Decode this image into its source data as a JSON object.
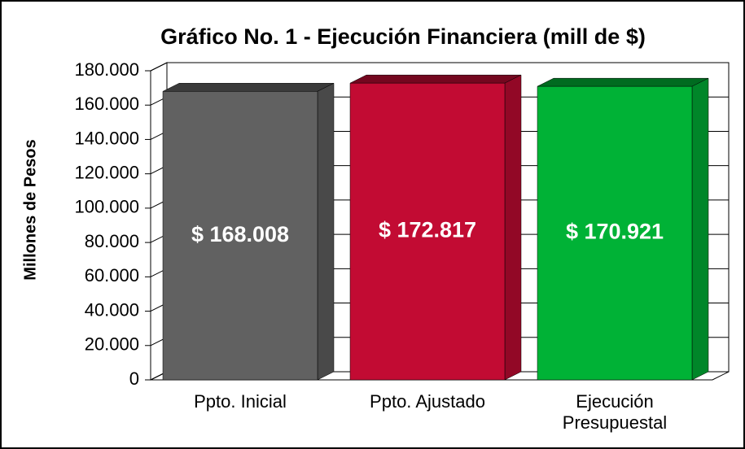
{
  "chart_data": {
    "type": "bar3d",
    "title": "Gráfico No. 1 - Ejecución Financiera (mill de $)",
    "y_label": "Millones de Pesos",
    "categories": [
      "Ppto. Inicial",
      "Ppto. Ajustado",
      "Ejecución Presupuestal"
    ],
    "values": [
      168008,
      172817,
      170921
    ],
    "value_labels": [
      "$ 168.008",
      "$ 172.817",
      "$ 170.921"
    ],
    "colors": [
      "#616161",
      "#c20b33",
      "#00b236"
    ],
    "ylim": [
      0,
      180000
    ],
    "yticks": [
      0,
      {
        "value": 20000,
        "label": "20.000"
      },
      {
        "value": 40000,
        "label": "40.000"
      },
      {
        "value": 60000,
        "label": "60.000"
      },
      {
        "value": 80000,
        "label": "80.000"
      },
      {
        "value": 100000,
        "label": "100.000"
      },
      {
        "value": 120000,
        "label": "120.000"
      },
      {
        "value": 140000,
        "label": "140.000"
      },
      {
        "value": 160000,
        "label": "160.000"
      },
      {
        "value": 180000,
        "label": "180.000"
      }
    ],
    "grid": true
  }
}
